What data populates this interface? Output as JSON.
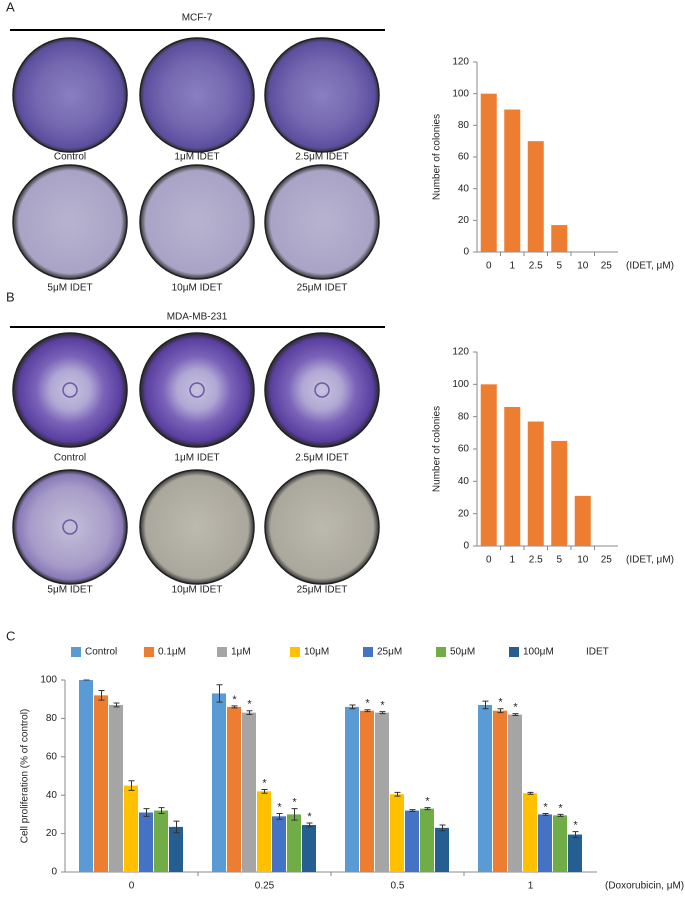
{
  "panels": [
    {
      "letter": "A",
      "title": "MCF-7",
      "dishes": [
        "Control",
        "1μM IDET",
        "2.5μM IDET",
        "5μM IDET",
        "10μM IDET",
        "25μM IDET"
      ]
    },
    {
      "letter": "B",
      "title": "MDA-MB-231",
      "dishes": [
        "Control",
        "1μM IDET",
        "2.5μM IDET",
        "5μM IDET",
        "10μM IDET",
        "25μM IDET"
      ]
    },
    {
      "letter": "C"
    }
  ],
  "chart_data": [
    {
      "type": "bar",
      "y_label": "Number of colonies",
      "x_label": "(IDET, μM)",
      "categories": [
        "0",
        "1",
        "2.5",
        "5",
        "10",
        "25"
      ],
      "values": [
        100,
        90,
        70,
        17,
        0,
        0
      ],
      "color": "#ed7d31",
      "ylim": [
        0,
        120
      ],
      "yticks": [
        0,
        20,
        40,
        60,
        80,
        100,
        120
      ]
    },
    {
      "type": "bar",
      "y_label": "Number of colonies",
      "x_label": "(IDET, μM)",
      "categories": [
        "0",
        "1",
        "2.5",
        "5",
        "10",
        "25"
      ],
      "values": [
        100,
        86,
        77,
        65,
        31,
        0
      ],
      "color": "#ed7d31",
      "ylim": [
        0,
        120
      ],
      "yticks": [
        0,
        20,
        40,
        60,
        80,
        100,
        120
      ]
    },
    {
      "type": "bar",
      "y_label": "Cell proliferation (% of control)",
      "x_label": "(Doxorubicin, μM)",
      "legend_note": "IDET",
      "categories": [
        "0",
        "0.25",
        "0.5",
        "1"
      ],
      "series": [
        {
          "name": "Control",
          "color": "#5b9bd5",
          "values": [
            100,
            93,
            86,
            87
          ],
          "errors": [
            0,
            4.5,
            1,
            2
          ],
          "annotations": [
            null,
            null,
            null,
            null
          ]
        },
        {
          "name": "0.1μM",
          "color": "#ed7d31",
          "values": [
            92,
            86,
            84,
            84
          ],
          "errors": [
            2.5,
            0.5,
            0.5,
            1
          ],
          "annotations": [
            null,
            "*",
            "*",
            "*"
          ]
        },
        {
          "name": "1μM",
          "color": "#a5a5a5",
          "values": [
            87,
            83,
            83,
            82
          ],
          "errors": [
            1,
            1,
            0.5,
            0.5
          ],
          "annotations": [
            null,
            "*",
            "*",
            "*"
          ]
        },
        {
          "name": "10μM",
          "color": "#ffc000",
          "values": [
            45,
            42,
            40.5,
            41
          ],
          "errors": [
            2.5,
            1,
            1,
            0.5
          ],
          "annotations": [
            null,
            "*",
            null,
            null
          ]
        },
        {
          "name": "25μM",
          "color": "#4472c4",
          "values": [
            31,
            29,
            32,
            30
          ],
          "errors": [
            2,
            1.5,
            0.5,
            0.5
          ],
          "annotations": [
            null,
            "*",
            null,
            "*"
          ]
        },
        {
          "name": "50μM",
          "color": "#70ad47",
          "values": [
            32,
            30,
            33,
            29.5
          ],
          "errors": [
            1.5,
            3,
            0.5,
            0.5
          ],
          "annotations": [
            null,
            "*",
            "*",
            "*"
          ]
        },
        {
          "name": "100μM",
          "color": "#255e91",
          "values": [
            23.5,
            24.5,
            23,
            19.5
          ],
          "errors": [
            3,
            1,
            1.5,
            1.5
          ],
          "annotations": [
            null,
            "*",
            null,
            "*"
          ]
        }
      ],
      "ylim": [
        0,
        100
      ],
      "yticks": [
        0,
        20,
        40,
        60,
        80,
        100
      ]
    }
  ]
}
